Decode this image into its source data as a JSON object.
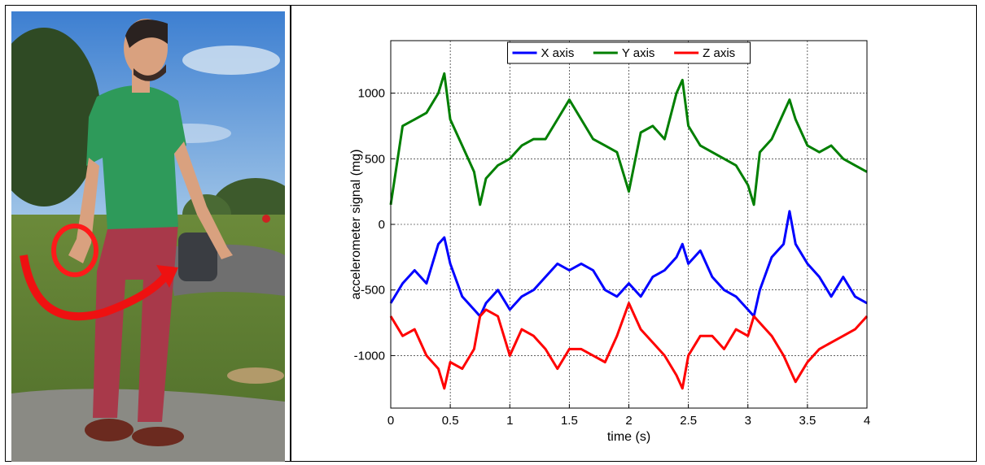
{
  "colors": {
    "x_axis": "#0000ff",
    "y_axis": "#007f00",
    "z_axis": "#ff0000",
    "grid": "#000000"
  },
  "photo": {
    "icon": "person-walking-with-wrist-rotation-arrow"
  },
  "chart_data": {
    "type": "line",
    "xlabel": "time (s)",
    "ylabel": "accelerometer signal (mg)",
    "xlim": [
      0,
      4
    ],
    "ylim": [
      -1400,
      1400
    ],
    "xticks": [
      0,
      0.5,
      1,
      1.5,
      2,
      2.5,
      3,
      3.5,
      4
    ],
    "xtick_labels": [
      "0",
      "0.5",
      "1",
      "1.5",
      "2",
      "2.5",
      "3",
      "3.5",
      "4"
    ],
    "yticks": [
      -1000,
      -500,
      0,
      500,
      1000
    ],
    "ytick_labels": [
      "-1000",
      "-500",
      "0",
      "500",
      "1000"
    ],
    "grid": true,
    "legend_position": "top-center",
    "x": [
      0,
      0.1,
      0.2,
      0.3,
      0.4,
      0.45,
      0.5,
      0.6,
      0.7,
      0.75,
      0.8,
      0.9,
      1.0,
      1.1,
      1.2,
      1.3,
      1.4,
      1.5,
      1.6,
      1.7,
      1.8,
      1.9,
      2.0,
      2.1,
      2.2,
      2.3,
      2.4,
      2.45,
      2.5,
      2.6,
      2.7,
      2.8,
      2.9,
      3.0,
      3.05,
      3.1,
      3.2,
      3.3,
      3.35,
      3.4,
      3.5,
      3.6,
      3.7,
      3.8,
      3.9,
      4.0
    ],
    "series": [
      {
        "name": "X axis",
        "color": "#0000ff",
        "values": [
          -600,
          -450,
          -350,
          -450,
          -150,
          -100,
          -300,
          -550,
          -650,
          -700,
          -600,
          -500,
          -650,
          -550,
          -500,
          -400,
          -300,
          -350,
          -300,
          -350,
          -500,
          -550,
          -450,
          -550,
          -400,
          -350,
          -250,
          -150,
          -300,
          -200,
          -400,
          -500,
          -550,
          -650,
          -700,
          -500,
          -250,
          -150,
          100,
          -150,
          -300,
          -400,
          -550,
          -400,
          -550,
          -600
        ]
      },
      {
        "name": "Y axis",
        "color": "#007f00",
        "values": [
          150,
          750,
          800,
          850,
          1000,
          1150,
          800,
          600,
          400,
          150,
          350,
          450,
          500,
          600,
          650,
          650,
          800,
          950,
          800,
          650,
          600,
          550,
          250,
          700,
          750,
          650,
          1000,
          1100,
          750,
          600,
          550,
          500,
          450,
          300,
          150,
          550,
          650,
          850,
          950,
          800,
          600,
          550,
          600,
          500,
          450,
          400
        ]
      },
      {
        "name": "Z axis",
        "color": "#ff0000",
        "values": [
          -700,
          -850,
          -800,
          -1000,
          -1100,
          -1250,
          -1050,
          -1100,
          -950,
          -700,
          -650,
          -700,
          -1000,
          -800,
          -850,
          -950,
          -1100,
          -950,
          -950,
          -1000,
          -1050,
          -850,
          -600,
          -800,
          -900,
          -1000,
          -1150,
          -1250,
          -1000,
          -850,
          -850,
          -950,
          -800,
          -850,
          -700,
          -750,
          -850,
          -1000,
          -1100,
          -1200,
          -1050,
          -950,
          -900,
          -850,
          -800,
          -700
        ]
      }
    ]
  }
}
